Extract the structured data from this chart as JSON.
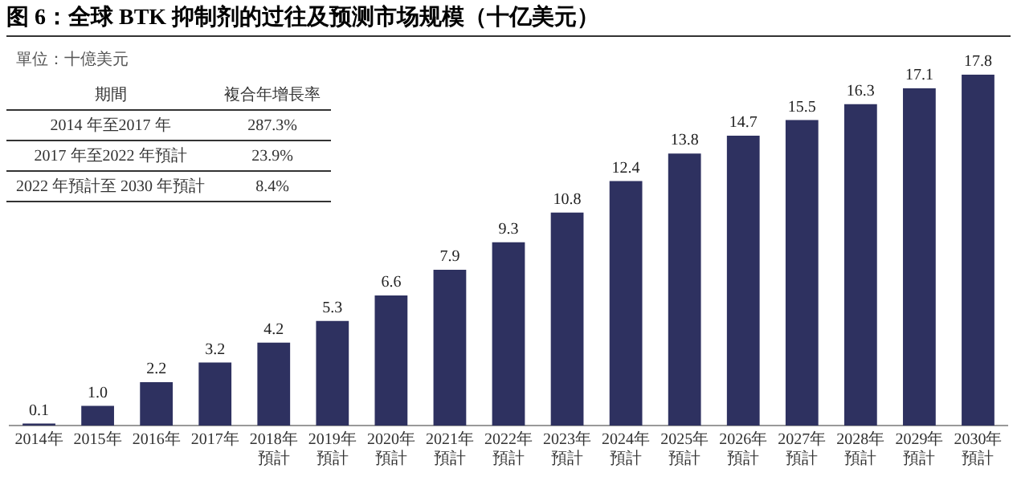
{
  "chart_data": {
    "type": "bar",
    "title": "图 6：全球 BTK 抑制剂的过往及预测市场规模（十亿美元）",
    "categories": [
      "2014年",
      "2015年",
      "2016年",
      "2017年",
      "2018年預計",
      "2019年預計",
      "2020年預計",
      "2021年預計",
      "2022年預計",
      "2023年預計",
      "2024年預計",
      "2025年預計",
      "2026年預計",
      "2027年預計",
      "2028年預計",
      "2029年預計",
      "2030年預計"
    ],
    "values": [
      0.1,
      1.0,
      2.2,
      3.2,
      4.2,
      5.3,
      6.6,
      7.9,
      9.3,
      10.8,
      12.4,
      13.8,
      14.7,
      15.5,
      16.3,
      17.1,
      17.8
    ],
    "value_labels": [
      "0.1",
      "1.0",
      "2.2",
      "3.2",
      "4.2",
      "5.3",
      "6.6",
      "7.9",
      "9.3",
      "10.8",
      "12.4",
      "13.8",
      "14.7",
      "15.5",
      "16.3",
      "17.1",
      "17.8"
    ],
    "color": "#2e3160",
    "tick_labels": "x",
    "grid": false,
    "legend": false,
    "annotations": [
      "單位：十億美元",
      "期間",
      "複合年增長率",
      "2014 年至2017 年",
      "287.3%",
      "2017 年至2022 年預計",
      "23.9%",
      "2022 年預計至 2030 年預計",
      "8.4%"
    ]
  }
}
